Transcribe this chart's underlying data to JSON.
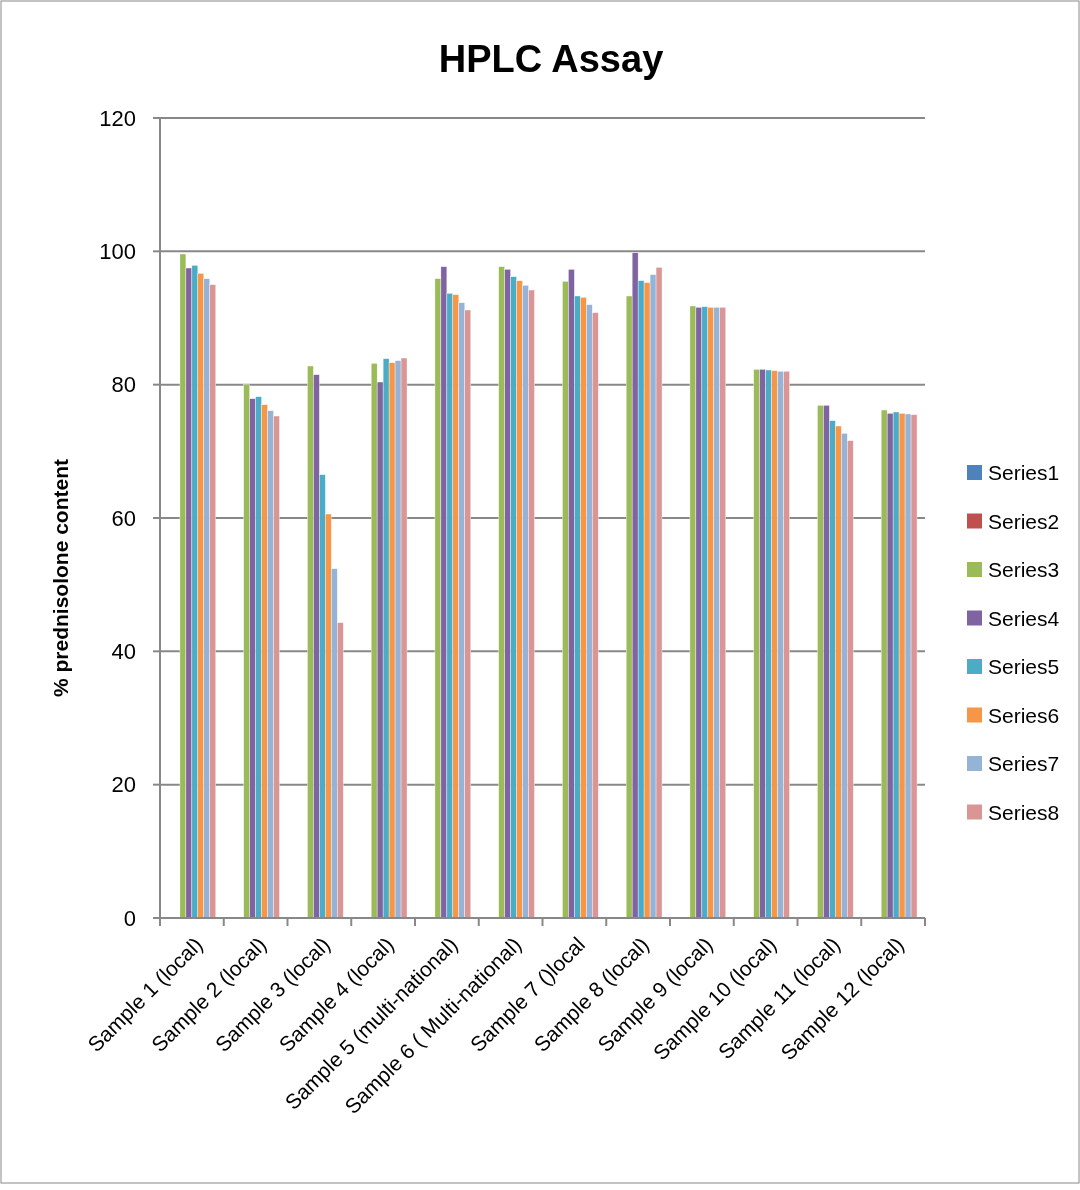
{
  "chart_data": {
    "type": "bar",
    "title": "HPLC Assay",
    "ylabel": "% prednisolone content",
    "categories": [
      "Sample 1 (local)",
      "Sample 2 (local)",
      "Sample 3 (local)",
      "Sample 4 (local)",
      "Sample 5 (multi-national)",
      "Sample 6 ( Multi-national)",
      "Sample 7 ()local",
      "Sample 8 (local)",
      "Sample 9 (local)",
      "Sample 10 (local)",
      "Sample 11 (local)",
      "Sample 12 (local)"
    ],
    "series": [
      {
        "name": "Series1",
        "color": "#4f81bd",
        "values": [
          null,
          null,
          null,
          null,
          null,
          null,
          null,
          null,
          null,
          null,
          null,
          null
        ]
      },
      {
        "name": "Series2",
        "color": "#c0504d",
        "values": [
          null,
          null,
          null,
          null,
          null,
          null,
          null,
          null,
          null,
          null,
          null,
          null
        ]
      },
      {
        "name": "Series3",
        "color": "#9bbb59",
        "values": [
          99.6,
          80.0,
          82.8,
          83.2,
          95.9,
          97.7,
          95.5,
          93.3,
          91.8,
          82.3,
          76.9,
          76.2
        ]
      },
      {
        "name": "Series4",
        "color": "#8064a2",
        "values": [
          97.5,
          77.9,
          81.5,
          80.4,
          97.7,
          97.3,
          97.3,
          99.8,
          91.6,
          82.3,
          76.9,
          75.7
        ]
      },
      {
        "name": "Series5",
        "color": "#4bacc6",
        "values": [
          97.9,
          78.2,
          66.5,
          83.9,
          93.7,
          96.2,
          93.3,
          95.6,
          91.7,
          82.2,
          74.6,
          75.9
        ]
      },
      {
        "name": "Series6",
        "color": "#f79646",
        "values": [
          96.7,
          77.0,
          60.6,
          83.3,
          93.5,
          95.6,
          93.1,
          95.3,
          91.6,
          82.1,
          73.8,
          75.7
        ]
      },
      {
        "name": "Series7",
        "color": "#95b3d7",
        "values": [
          95.9,
          76.1,
          52.4,
          83.6,
          92.3,
          94.9,
          92.0,
          96.5,
          91.6,
          82.0,
          72.7,
          75.6
        ]
      },
      {
        "name": "Series8",
        "color": "#d99694",
        "values": [
          95.0,
          75.3,
          44.3,
          84.0,
          91.2,
          94.2,
          90.8,
          97.6,
          91.6,
          82.0,
          71.6,
          75.5
        ]
      }
    ],
    "ylim": [
      0,
      120
    ],
    "yticks": [
      0,
      20,
      40,
      60,
      80,
      100,
      120
    ],
    "grid": "y",
    "legend": "right"
  }
}
